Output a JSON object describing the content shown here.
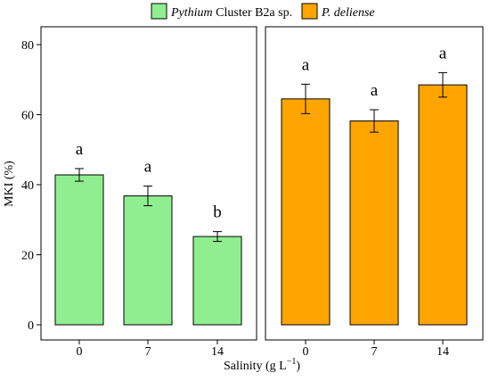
{
  "chart_data": {
    "type": "bar",
    "ylabel": "MKI (%)",
    "xlabel_main": "Salinity (g L",
    "xlabel_sup": "−1",
    "xlabel_close": ")",
    "ylim": [
      0,
      80
    ],
    "yticks": [
      0,
      20,
      40,
      60,
      80
    ],
    "categories": [
      "0",
      "7",
      "14"
    ],
    "series": [
      {
        "name_italic": "Pythium",
        "name_rest": " Cluster B2a sp.",
        "color": "#90EE90",
        "values": [
          42.8,
          36.8,
          25.2
        ],
        "errors": [
          1.8,
          2.8,
          1.4
        ],
        "letters": [
          "a",
          "a",
          "b"
        ]
      },
      {
        "name_italic": "P. deliense",
        "name_rest": "",
        "color": "#FFA500",
        "values": [
          64.5,
          58.2,
          68.5
        ],
        "errors": [
          4.2,
          3.2,
          3.5
        ],
        "letters": [
          "a",
          "a",
          "a"
        ]
      }
    ],
    "legend_position": "top-center",
    "grid": false
  }
}
